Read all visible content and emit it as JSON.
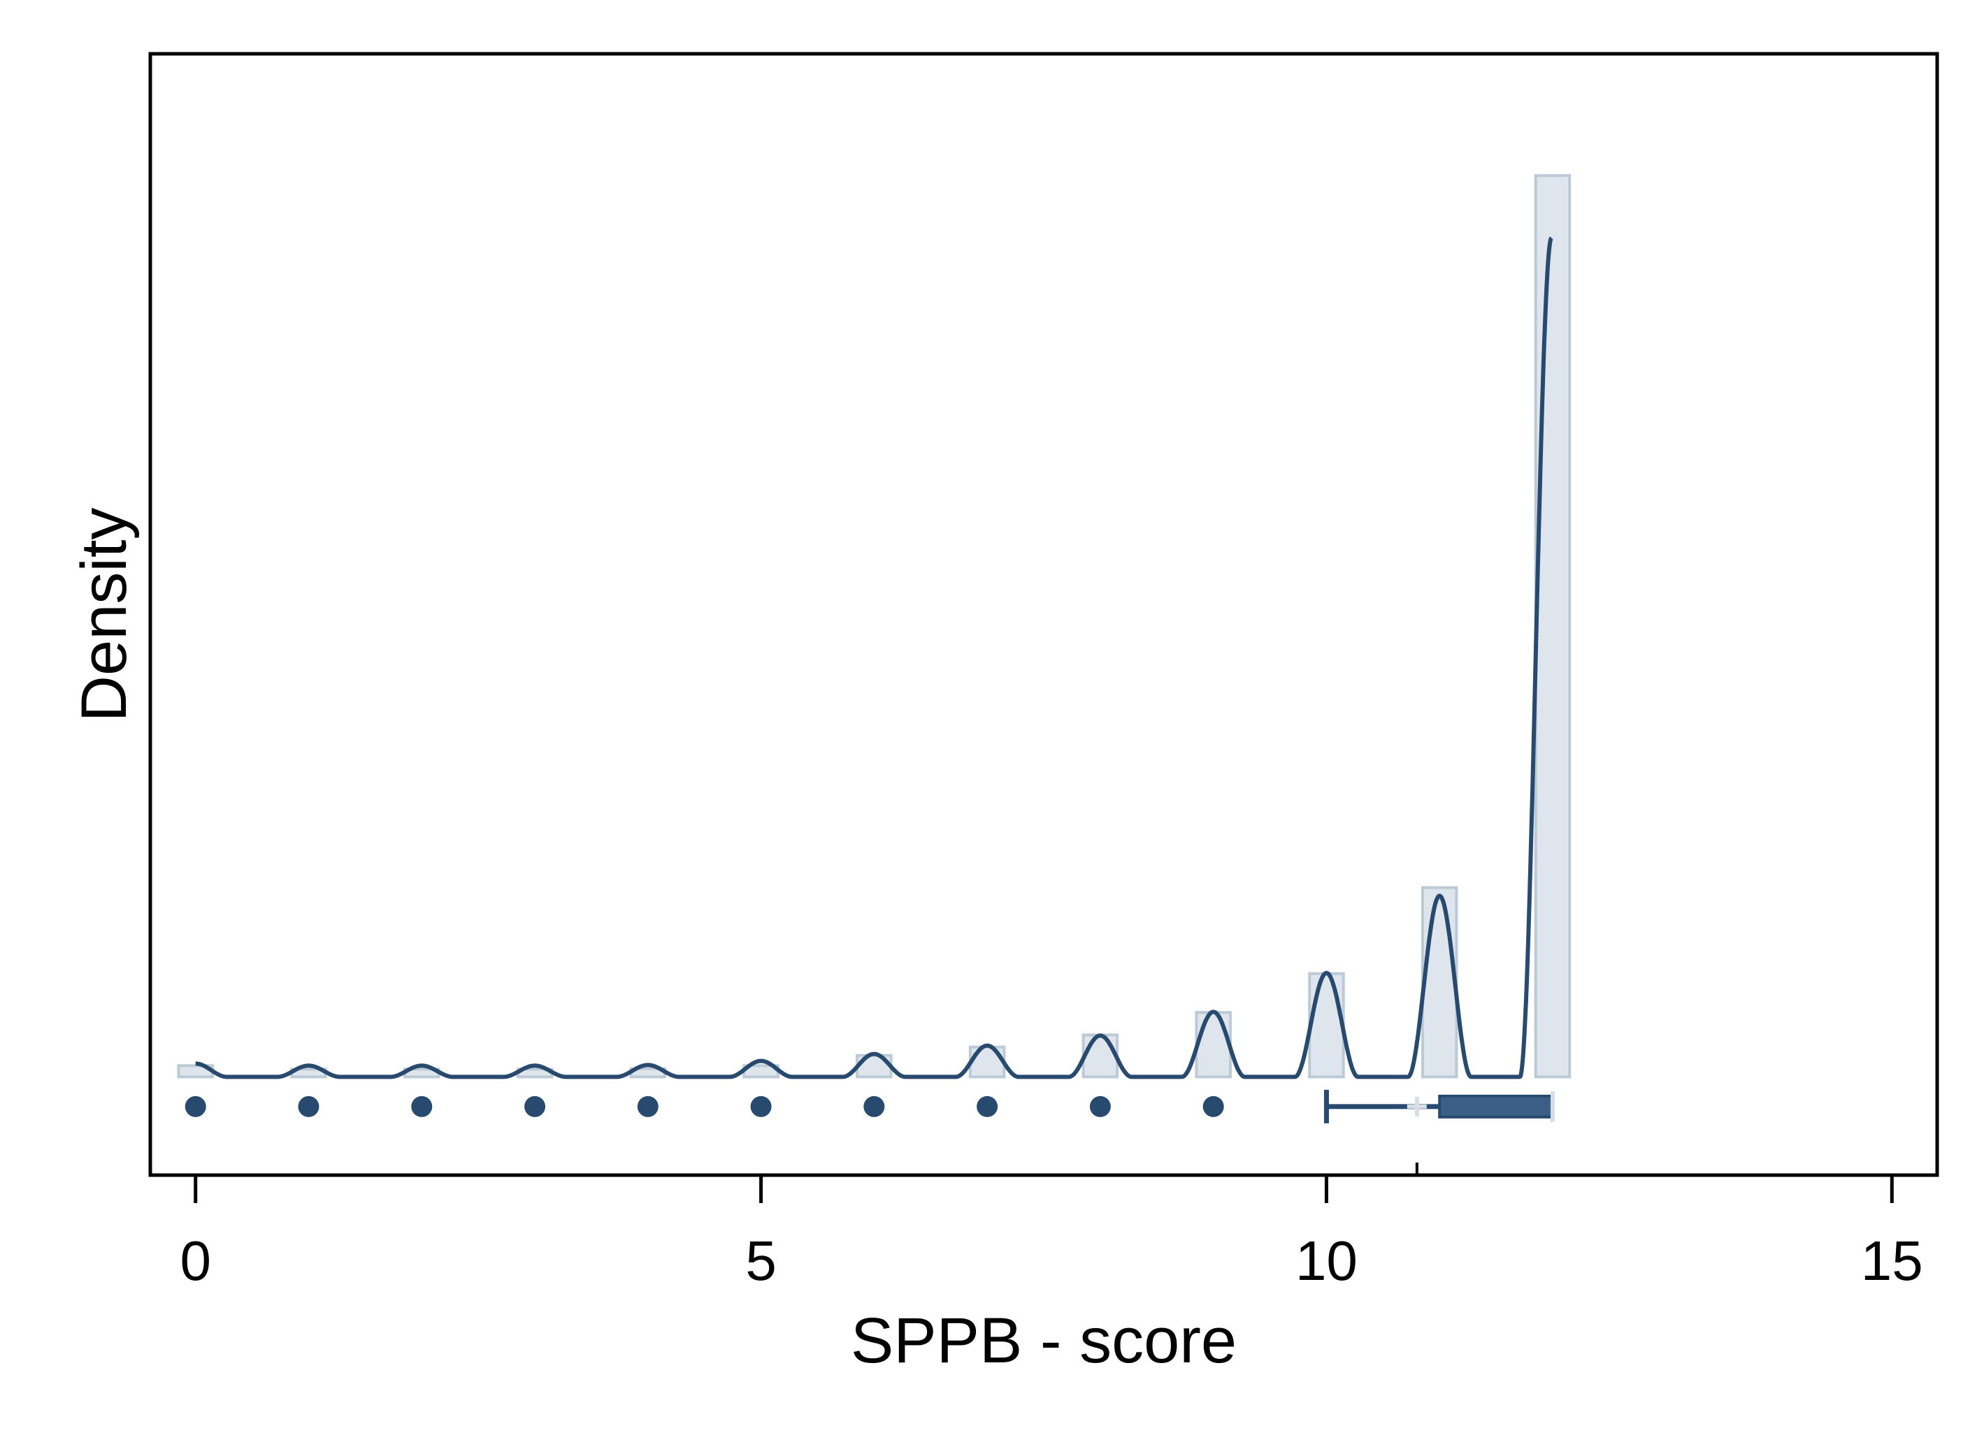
{
  "chart_data": {
    "type": "bar",
    "subtype": "histogram with kernel density line, strip of outlier points and box plot",
    "title": "",
    "xlabel": "SPPB - score",
    "ylabel": "Density",
    "xlim": [
      -0.4,
      15.4
    ],
    "ylim": [
      -0.048,
      0.5
    ],
    "xticks": [
      0,
      5,
      10,
      15
    ],
    "yticks": [],
    "grid": false,
    "legend": "none",
    "colors": {
      "line": "#274a6e",
      "bar_fill": "#dfe5ec",
      "bar_edge": "#bccad6",
      "points": "#274a6e",
      "box_fill": "#3b5f86",
      "mean_marker": "#d6dde6",
      "axes": "#000000"
    },
    "histogram": {
      "bin_width": 0.3,
      "x": [
        0,
        1,
        2,
        3,
        4,
        5,
        6,
        7,
        8,
        9,
        10,
        11,
        12
      ],
      "values": [
        0.0055,
        0.0038,
        0.0038,
        0.0038,
        0.004,
        0.0055,
        0.0105,
        0.0146,
        0.0205,
        0.0315,
        0.0505,
        0.0925,
        0.4405
      ]
    },
    "density": {
      "peaks_x": [
        0,
        1,
        2,
        3,
        4,
        5,
        6,
        7,
        8,
        9,
        10,
        11,
        11.99
      ],
      "peaks_y": [
        0.0065,
        0.0055,
        0.0055,
        0.0055,
        0.0058,
        0.0078,
        0.0112,
        0.0153,
        0.0202,
        0.0318,
        0.0508,
        0.0885,
        0.41
      ],
      "half_width": 0.28
    },
    "outlier_points": {
      "x": [
        0,
        1,
        2,
        3,
        4,
        5,
        6,
        7,
        8,
        9
      ]
    },
    "boxplot": {
      "whisker_low": 10,
      "q1": 11,
      "median": 12,
      "q3": 12,
      "whisker_high": 12,
      "mean": 10.8
    }
  }
}
